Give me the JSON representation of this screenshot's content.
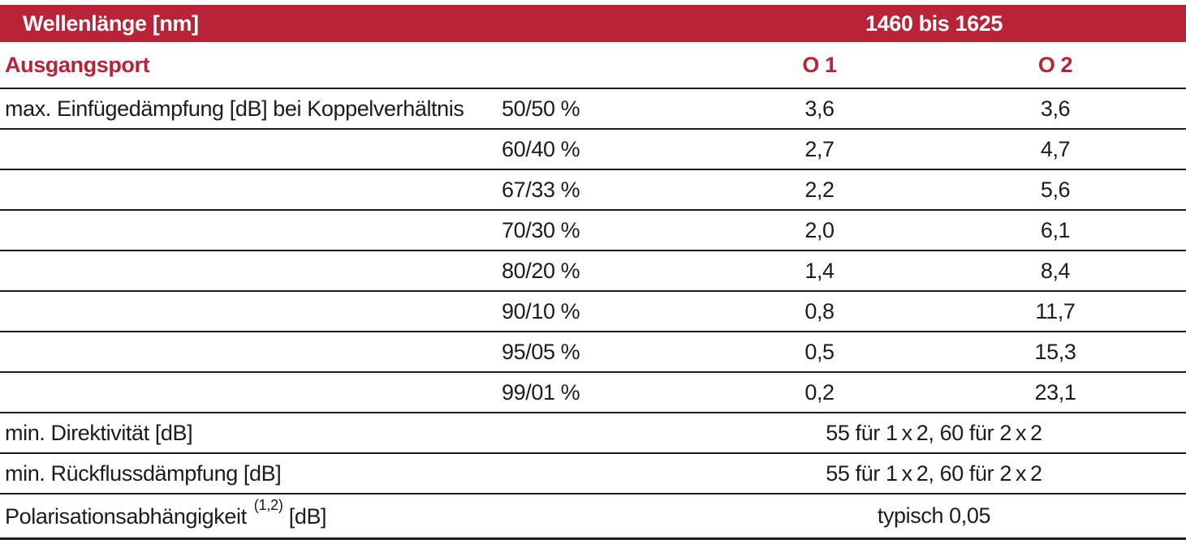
{
  "colors": {
    "accent": "#B82337",
    "text": "#1C1C1C",
    "rule": "#1C1C1C",
    "background": "#FFFFFF"
  },
  "table": {
    "header": {
      "label": "Wellenlänge [nm]",
      "range": "1460 bis 1625"
    },
    "subheader": {
      "label": "Ausgangsport",
      "o1": "O 1",
      "o2": "O 2"
    },
    "coupling": {
      "label": "max. Einfügedämpfung [dB] bei Koppelverhältnis",
      "rows": [
        {
          "ratio": "50/50 %",
          "o1": "3,6",
          "o2": "3,6"
        },
        {
          "ratio": "60/40 %",
          "o1": "2,7",
          "o2": "4,7"
        },
        {
          "ratio": "67/33 %",
          "o1": "2,2",
          "o2": "5,6"
        },
        {
          "ratio": "70/30 %",
          "o1": "2,0",
          "o2": "6,1"
        },
        {
          "ratio": "80/20 %",
          "o1": "1,4",
          "o2": "8,4"
        },
        {
          "ratio": "90/10 %",
          "o1": "0,8",
          "o2": "11,7"
        },
        {
          "ratio": "95/05 %",
          "o1": "0,5",
          "o2": "15,3"
        },
        {
          "ratio": "99/01 %",
          "o1": "0,2",
          "o2": "23,1"
        }
      ]
    },
    "summary": [
      {
        "label": "min. Direktivität [dB]",
        "value": "55 für 1 x 2, 60 für 2 x 2"
      },
      {
        "label": "min. Rückflussdämpfung [dB]",
        "value": "55 für 1 x 2, 60 für 2 x 2"
      },
      {
        "label": "Polarisationsabhängigkeit",
        "label_sup": "(1,2)",
        "label_suffix": "[dB]",
        "value": "typisch 0,05"
      }
    ]
  }
}
